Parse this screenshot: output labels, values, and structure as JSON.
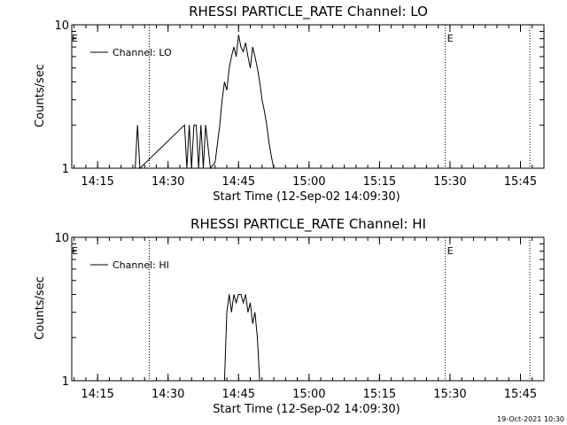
{
  "timestamp": "19-Oct-2021 10:30",
  "chart_data": [
    {
      "type": "line",
      "title": "RHESSI PARTICLE_RATE Channel: LO",
      "xlabel": "Start Time (12-Sep-02 14:09:30)",
      "ylabel": "Counts/sec",
      "y_scale": "log",
      "ylim": [
        1,
        10
      ],
      "y_ticks": [
        "1",
        "10"
      ],
      "xlim": [
        "14:09:30",
        "15:50:00"
      ],
      "x_ticks": [
        "14:15",
        "14:30",
        "14:45",
        "15:00",
        "15:15",
        "15:30",
        "15:45"
      ],
      "legend": {
        "placement": "top-left",
        "entries": [
          "Channel: LO"
        ]
      },
      "event_lines": [
        {
          "time": "14:26:00",
          "label": ""
        },
        {
          "time": "15:29:00",
          "label": "E"
        },
        {
          "time": "15:47:00",
          "label": ""
        }
      ],
      "start_marker": "E",
      "series": [
        {
          "name": "Channel: LO",
          "x": [
            "14:23:00",
            "14:23:30",
            "14:24:00",
            "14:33:30",
            "14:34:00",
            "14:34:30",
            "14:35:00",
            "14:35:30",
            "14:36:00",
            "14:36:30",
            "14:37:00",
            "14:37:30",
            "14:38:00",
            "14:39:00",
            "14:40:00",
            "14:41:00",
            "14:41:30",
            "14:42:00",
            "14:42:30",
            "14:43:00",
            "14:43:30",
            "14:44:00",
            "14:44:30",
            "14:45:00",
            "14:45:30",
            "14:46:00",
            "14:46:30",
            "14:47:00",
            "14:47:30",
            "14:48:00",
            "14:48:30",
            "14:49:00",
            "14:49:30",
            "14:50:00",
            "14:50:30",
            "14:51:00",
            "14:51:30",
            "14:52:00",
            "14:52:30"
          ],
          "y": [
            1,
            2,
            1,
            2,
            1,
            2,
            1,
            2,
            2,
            1,
            2,
            1,
            2,
            1,
            1.1,
            2,
            3,
            4,
            3.5,
            5,
            6,
            7,
            6,
            8.5,
            7,
            6.5,
            7.5,
            6,
            5,
            7,
            6,
            5,
            4,
            3,
            2.5,
            2,
            1.5,
            1.2,
            1
          ]
        }
      ]
    },
    {
      "type": "line",
      "title": "RHESSI PARTICLE_RATE Channel: HI",
      "xlabel": "Start Time (12-Sep-02 14:09:30)",
      "ylabel": "Counts/sec",
      "y_scale": "log",
      "ylim": [
        1,
        10
      ],
      "y_ticks": [
        "1",
        "10"
      ],
      "xlim": [
        "14:09:30",
        "15:50:00"
      ],
      "x_ticks": [
        "14:15",
        "14:30",
        "14:45",
        "15:00",
        "15:15",
        "15:30",
        "15:45"
      ],
      "legend": {
        "placement": "top-left",
        "entries": [
          "Channel: HI"
        ]
      },
      "event_lines": [
        {
          "time": "14:26:00",
          "label": ""
        },
        {
          "time": "15:29:00",
          "label": "E"
        },
        {
          "time": "15:47:00",
          "label": ""
        }
      ],
      "start_marker": "E",
      "series": [
        {
          "name": "Channel: HI",
          "x": [
            "14:42:00",
            "14:42:30",
            "14:43:00",
            "14:43:30",
            "14:44:00",
            "14:44:30",
            "14:45:00",
            "14:45:30",
            "14:46:00",
            "14:46:30",
            "14:47:00",
            "14:47:30",
            "14:48:00",
            "14:48:30",
            "14:49:00",
            "14:49:30"
          ],
          "y": [
            1,
            3,
            4,
            3,
            4,
            3.5,
            4,
            4,
            3.5,
            4,
            3,
            3.5,
            2.5,
            3,
            2,
            1
          ]
        }
      ]
    }
  ]
}
